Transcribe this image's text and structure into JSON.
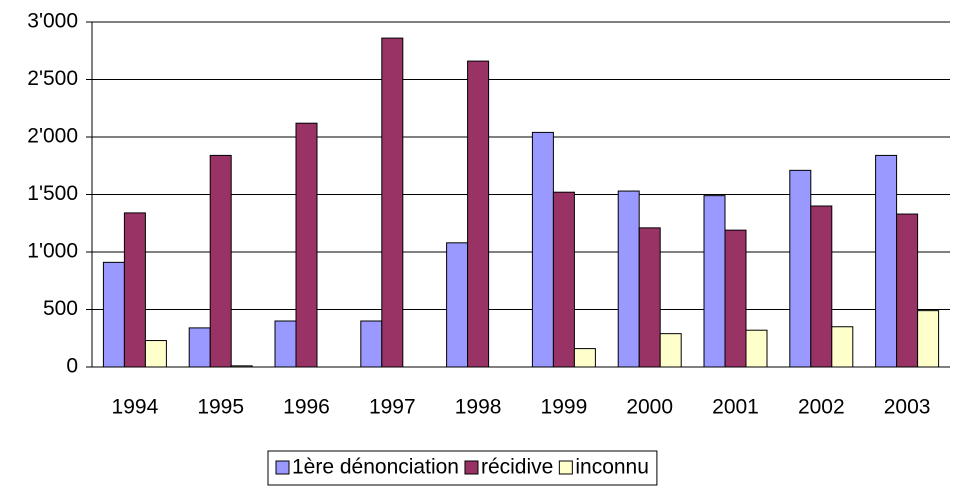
{
  "chart_data": {
    "type": "bar",
    "categories": [
      "1994",
      "1995",
      "1996",
      "1997",
      "1998",
      "1999",
      "2000",
      "2001",
      "2002",
      "2003"
    ],
    "series": [
      {
        "name": "1ère dénonciation",
        "color": "#9999ff",
        "values": [
          910,
          340,
          400,
          400,
          1080,
          2040,
          1530,
          1490,
          1710,
          1840
        ]
      },
      {
        "name": "récidive",
        "color": "#993366",
        "values": [
          1340,
          1840,
          2120,
          2860,
          2660,
          1520,
          1210,
          1190,
          1400,
          1330
        ]
      },
      {
        "name": "inconnu",
        "color": "#ffffcc",
        "values": [
          230,
          10,
          0,
          0,
          0,
          160,
          290,
          320,
          350,
          490
        ]
      }
    ],
    "ylim": [
      0,
      3000
    ],
    "yticks": [
      0,
      500,
      {
        "value": 1000,
        "label": "1'000"
      },
      {
        "value": 1500,
        "label": "1'500"
      },
      {
        "value": 2000,
        "label": "2'000"
      },
      {
        "value": 2500,
        "label": "2'500"
      },
      {
        "value": 3000,
        "label": "3'000"
      }
    ],
    "grid": true,
    "legend": "bottom"
  }
}
